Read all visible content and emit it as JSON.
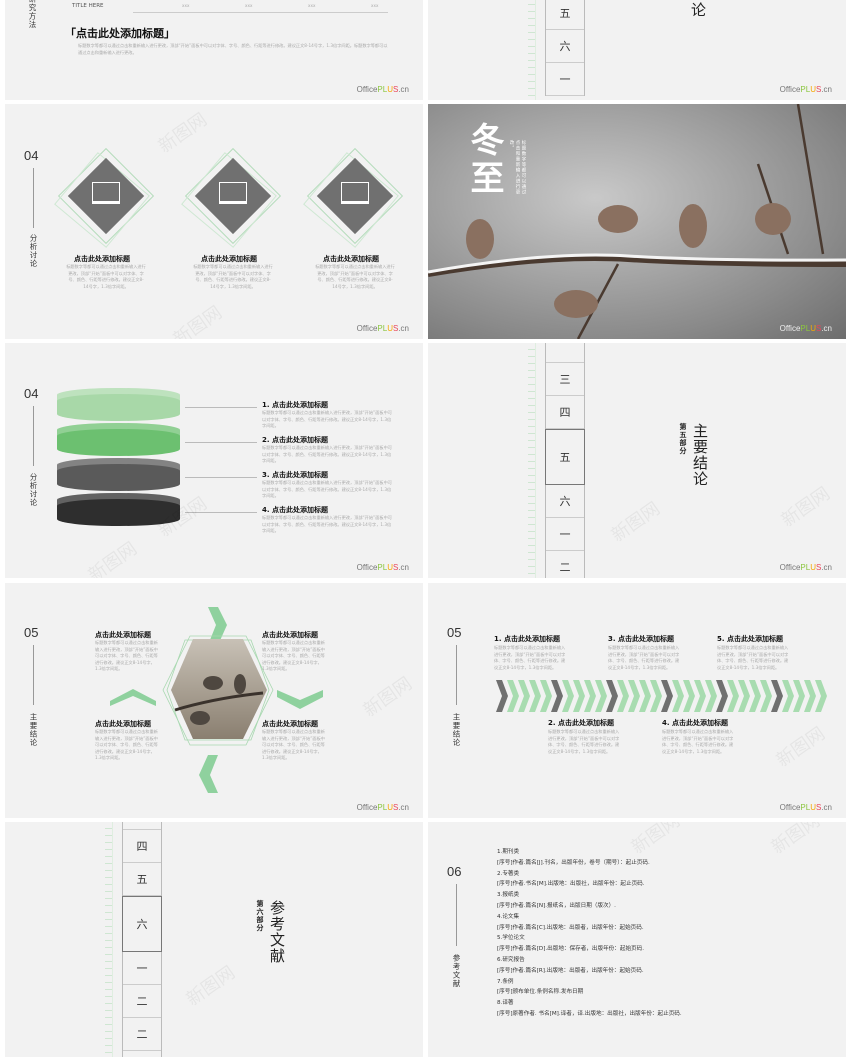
{
  "common": {
    "title": "点击此处添加标题",
    "body": "标题数字等都可以通过点击和重新输入进行更改，顶部“开始”面板中可以对字体、字号、颜色、行距等进行修改。建议正文8-14号字，1.3倍字间距。",
    "logo": {
      "a": "Office",
      "b": "PL",
      "c": "U",
      "d": "S",
      ".cn": ".cn"
    },
    "watermark": "新图网",
    "accent": "#8fd19e",
    "gray": "#707070"
  },
  "s1": {
    "section": "研究方法",
    "table_header": "TITLE HERE",
    "cols": [
      "xxx",
      "xxx",
      "xxx",
      "xxx"
    ],
    "title": "「点击此处添加标题」",
    "body": "标题数字等都可以通过点击和重新输入进行更改，顶部“开始”面板中可以对字体、字号、颜色、行距等进行修改。建议正文8-14号字，1.3倍字间距。标题数字等都可以通过点击和重新输入进行更改。"
  },
  "s2": {
    "strip": [
      "五",
      "六",
      "一"
    ],
    "title_tail": "论"
  },
  "s3": {
    "num": "04",
    "section": "分析讨论",
    "icons": [
      "presentation-chart-icon",
      "monitor-chart-icon",
      "laptop-cursor-icon"
    ]
  },
  "s4": {
    "title": "冬至",
    "body": "标题数字等都可以通过点击和重新输入进行更改。"
  },
  "s5": {
    "num": "04",
    "section": "分析讨论",
    "items": [
      "1. 点击此处添加标题",
      "2. 点击此处添加标题",
      "3. 点击此处添加标题",
      "4. 点击此处添加标题"
    ],
    "layer_colors": [
      "#a8d8a8",
      "#6cc070",
      "#5a5a5a",
      "#2e2e2e"
    ]
  },
  "s6": {
    "strip": [
      "三",
      "四",
      "五",
      "六",
      "一",
      "二"
    ],
    "active": "五",
    "part": "第五部分",
    "title": "主要结论"
  },
  "s7": {
    "num": "05",
    "section": "主要结论"
  },
  "s8": {
    "num": "05",
    "section": "主要结论",
    "top": [
      "1. 点击此处添加标题",
      "3. 点击此处添加标题",
      "5. 点击此处添加标题"
    ],
    "bottom": [
      "2. 点击此处添加标题",
      "4. 点击此处添加标题"
    ]
  },
  "s9": {
    "strip": [
      "四",
      "五",
      "六",
      "一",
      "二",
      "二"
    ],
    "active": "六",
    "part": "第六部分",
    "title": "参考文献"
  },
  "s10": {
    "num": "06",
    "section": "参考文献",
    "refs": [
      "1.期刊类",
      "[序号]作者.篇名[J].刊名，出版年份，卷号（期号）：起止页码.",
      "2.专著类",
      "[序号]作者.书名[M].出版地：出版社，出版年份：起止页码.",
      "3.报纸类",
      "[序号]作者.篇名[N].报纸名，出版日期（版次）.",
      "4.论文集",
      "[序号]作者.篇名[C].出版地：出版者，出版年份：起始页码.",
      "5.学位论文",
      "[序号]作者.篇名[D].出版地：保存者，出版年份：起始页码.",
      "6.研究报告",
      "[序号]作者.篇名[R].出版地：出版者，出版年份：起始页码.",
      "7.条例",
      "[序号]颁布单位.条例名称.发布日期",
      "8.译著",
      "[序号]原著作者. 书名[M].译者，译.出版地：出版社，出版年份：起止页码."
    ]
  }
}
